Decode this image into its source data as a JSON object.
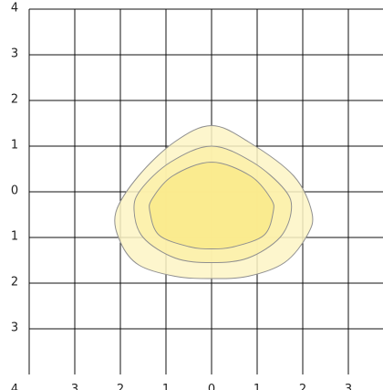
{
  "chart_data": {
    "type": "contour",
    "title": "",
    "xlabel": "",
    "ylabel": "",
    "xlim": [
      -4,
      3.75
    ],
    "ylim": [
      -4,
      4
    ],
    "grid": true,
    "x_ticks": [
      {
        "value": -4,
        "label": "4"
      },
      {
        "value": -3,
        "label": "3"
      },
      {
        "value": -2,
        "label": "2"
      },
      {
        "value": -1,
        "label": "1"
      },
      {
        "value": 0,
        "label": "0"
      },
      {
        "value": 1,
        "label": "1"
      },
      {
        "value": 2,
        "label": "2"
      },
      {
        "value": 3,
        "label": "3"
      }
    ],
    "y_ticks": [
      {
        "value": 4,
        "label": "4"
      },
      {
        "value": 3,
        "label": "3"
      },
      {
        "value": 2,
        "label": "2"
      },
      {
        "value": 1,
        "label": "1"
      },
      {
        "value": 0,
        "label": "0"
      },
      {
        "value": -1,
        "label": "1"
      },
      {
        "value": -2,
        "label": "2"
      },
      {
        "value": -3,
        "label": "3"
      }
    ],
    "contours": [
      {
        "level": 1,
        "fill": "#fdf5c4",
        "stroke": "#8f8f8f",
        "points": [
          [
            0,
            1.45
          ],
          [
            -0.8,
            1.1
          ],
          [
            -1.6,
            0.35
          ],
          [
            -2.1,
            -0.45
          ],
          [
            -2.0,
            -1.1
          ],
          [
            -1.6,
            -1.6
          ],
          [
            -0.8,
            -1.85
          ],
          [
            0,
            -1.9
          ],
          [
            0.8,
            -1.85
          ],
          [
            1.6,
            -1.55
          ],
          [
            2.1,
            -0.95
          ],
          [
            2.2,
            -0.45
          ],
          [
            1.8,
            0.35
          ],
          [
            0.8,
            1.1
          ]
        ]
      },
      {
        "level": 2,
        "fill": "#fbf0a8",
        "stroke": "#8f8f8f",
        "points": [
          [
            0,
            1.0
          ],
          [
            -0.9,
            0.65
          ],
          [
            -1.55,
            0.05
          ],
          [
            -1.7,
            -0.4
          ],
          [
            -1.5,
            -1.0
          ],
          [
            -0.8,
            -1.45
          ],
          [
            0,
            -1.55
          ],
          [
            0.8,
            -1.45
          ],
          [
            1.5,
            -1.0
          ],
          [
            1.75,
            -0.4
          ],
          [
            1.6,
            0.05
          ],
          [
            0.9,
            0.65
          ]
        ]
      },
      {
        "level": 3,
        "fill": "#f9ea8a",
        "stroke": "#8f8f8f",
        "points": [
          [
            0,
            0.65
          ],
          [
            -0.85,
            0.35
          ],
          [
            -1.3,
            -0.15
          ],
          [
            -1.35,
            -0.45
          ],
          [
            -1.15,
            -0.95
          ],
          [
            -0.5,
            -1.2
          ],
          [
            0,
            -1.25
          ],
          [
            0.5,
            -1.2
          ],
          [
            1.15,
            -0.95
          ],
          [
            1.35,
            -0.45
          ],
          [
            1.3,
            -0.15
          ],
          [
            0.85,
            0.35
          ]
        ]
      }
    ]
  }
}
